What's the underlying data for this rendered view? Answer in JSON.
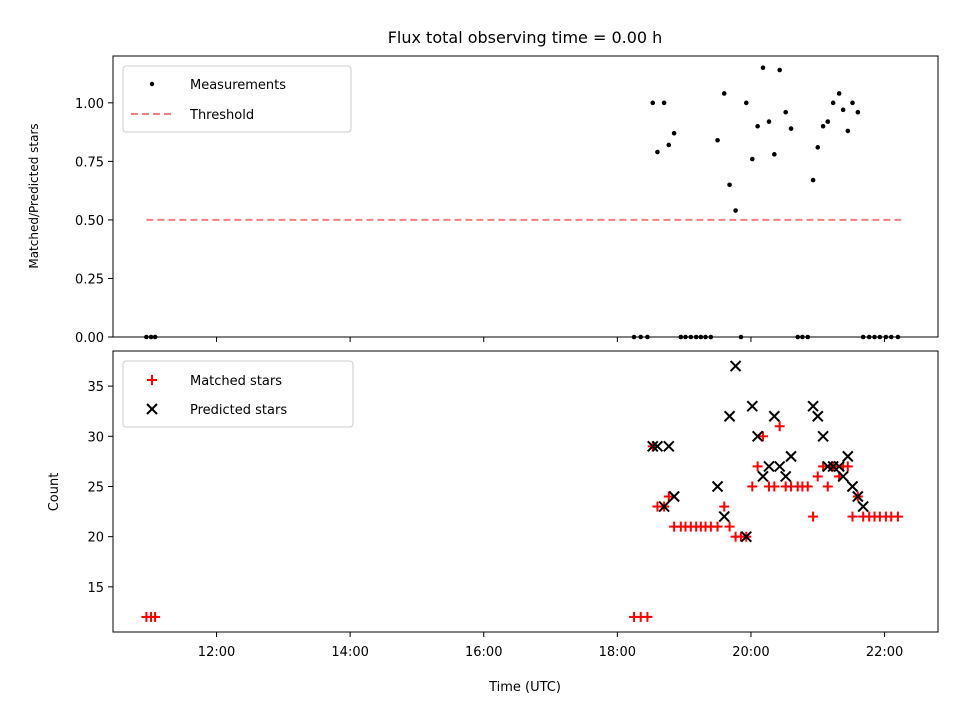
{
  "chart_data": [
    {
      "type": "scatter",
      "title": "Flux total observing time = 0.00 h",
      "xlabel": "",
      "ylabel": "Matched/Predicted stars",
      "xlim": [
        10.45,
        22.8
      ],
      "ylim": [
        0,
        1.2
      ],
      "yticks": [
        0,
        0.25,
        0.5,
        0.75,
        1.0
      ],
      "ytick_labels": [
        "0.00",
        "0.25",
        "0.50",
        "0.75",
        "1.00"
      ],
      "legend_position": "top-left",
      "series": [
        {
          "name": "Measurements",
          "marker": "dot",
          "color": "#000000",
          "x": [
            10.95,
            11.02,
            11.08,
            18.25,
            18.35,
            18.45,
            18.53,
            18.6,
            18.7,
            18.77,
            18.85,
            18.95,
            19.02,
            19.1,
            19.18,
            19.25,
            19.32,
            19.4,
            19.5,
            19.6,
            19.68,
            19.77,
            19.85,
            19.93,
            20.02,
            20.1,
            20.18,
            20.27,
            20.35,
            20.43,
            20.52,
            20.6,
            20.7,
            20.77,
            20.85,
            20.93,
            21.0,
            21.08,
            21.15,
            21.23,
            21.32,
            21.38,
            21.45,
            21.52,
            21.6,
            21.68,
            21.77,
            21.85,
            21.93,
            22.02,
            22.1,
            22.2
          ],
          "y": [
            0,
            0,
            0,
            0,
            0,
            0,
            1.0,
            0.79,
            1.0,
            0.82,
            0.87,
            0,
            0,
            0,
            0,
            0,
            0,
            0,
            0.84,
            1.04,
            0.65,
            0.54,
            0,
            1.0,
            0.76,
            0.9,
            1.15,
            0.92,
            0.78,
            1.14,
            0.96,
            0.89,
            0,
            0,
            0,
            0.67,
            0.81,
            0.9,
            0.92,
            1.0,
            1.04,
            0.97,
            0.88,
            1.0,
            0.96,
            0,
            0,
            0,
            0,
            0,
            0,
            0
          ]
        },
        {
          "name": "Threshold",
          "marker": "dashed-line",
          "color": "#f08080",
          "x": [
            10.95,
            22.25
          ],
          "y": [
            0.5,
            0.5
          ]
        }
      ]
    },
    {
      "type": "scatter",
      "title": "",
      "xlabel": "Time (UTC)",
      "ylabel": "Count",
      "xlim": [
        10.45,
        22.8
      ],
      "ylim": [
        10.5,
        38.5
      ],
      "xticks": [
        12,
        14,
        16,
        18,
        20,
        22
      ],
      "xtick_labels": [
        "12:00",
        "14:00",
        "16:00",
        "18:00",
        "20:00",
        "22:00"
      ],
      "yticks": [
        15,
        20,
        25,
        30,
        35
      ],
      "ytick_labels": [
        "15",
        "20",
        "25",
        "30",
        "35"
      ],
      "legend_position": "top-left",
      "series": [
        {
          "name": "Matched stars",
          "marker": "plus",
          "color": "#ff0000",
          "x": [
            10.95,
            11.02,
            11.08,
            18.25,
            18.35,
            18.45,
            18.53,
            18.6,
            18.7,
            18.77,
            18.85,
            18.95,
            19.02,
            19.1,
            19.18,
            19.25,
            19.32,
            19.4,
            19.5,
            19.6,
            19.68,
            19.77,
            19.85,
            19.93,
            20.02,
            20.1,
            20.18,
            20.27,
            20.35,
            20.43,
            20.52,
            20.6,
            20.7,
            20.77,
            20.85,
            20.93,
            21.0,
            21.08,
            21.15,
            21.23,
            21.32,
            21.38,
            21.45,
            21.52,
            21.6,
            21.68,
            21.77,
            21.85,
            21.93,
            22.02,
            22.1,
            22.2
          ],
          "y": [
            12,
            12,
            12,
            12,
            12,
            12,
            29,
            23,
            23,
            24,
            21,
            21,
            21,
            21,
            21,
            21,
            21,
            21,
            21,
            23,
            21,
            20,
            20,
            20,
            25,
            27,
            30,
            25,
            25,
            31,
            25,
            25,
            25,
            25,
            25,
            22,
            26,
            27,
            25,
            27,
            26,
            27,
            27,
            22,
            24,
            22,
            22,
            22,
            22,
            22,
            22,
            22
          ]
        },
        {
          "name": "Predicted stars",
          "marker": "x",
          "color": "#000000",
          "x": [
            18.53,
            18.6,
            18.7,
            18.77,
            18.85,
            19.5,
            19.6,
            19.68,
            19.77,
            19.93,
            20.02,
            20.1,
            20.18,
            20.27,
            20.35,
            20.43,
            20.52,
            20.6,
            20.93,
            21.0,
            21.08,
            21.15,
            21.23,
            21.32,
            21.38,
            21.45,
            21.52,
            21.6,
            21.68
          ],
          "y": [
            29,
            29,
            23,
            29,
            24,
            25,
            22,
            32,
            37,
            20,
            33,
            30,
            26,
            27,
            32,
            27,
            26,
            28,
            33,
            32,
            30,
            27,
            27,
            27,
            26,
            28,
            25,
            24,
            23
          ]
        }
      ]
    }
  ]
}
